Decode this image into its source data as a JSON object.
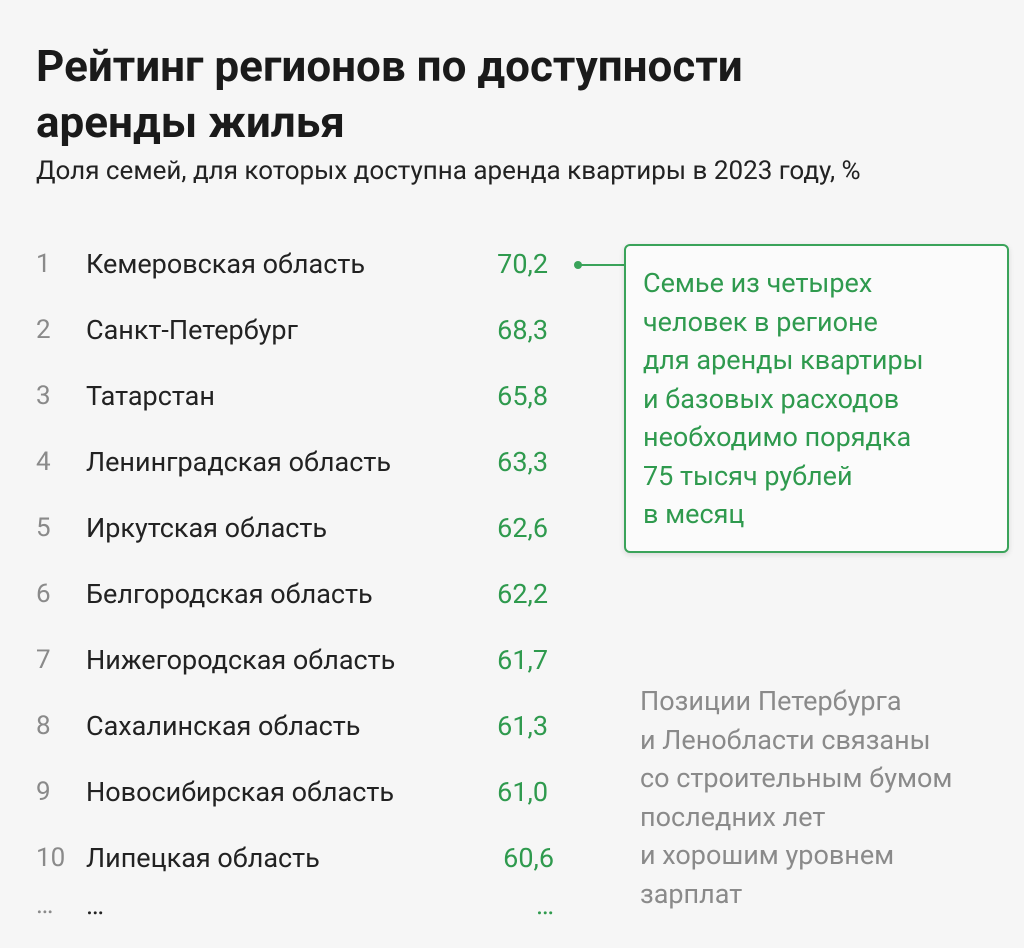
{
  "header": {
    "title_lines": [
      "Рейтинг регионов по доступности",
      "аренды жилья"
    ],
    "subtitle": "Доля семей, для которых доступна аренда квартиры в 2023 году, %"
  },
  "table": {
    "rows": [
      [
        "1",
        "Кемеровская область",
        "70,2"
      ],
      [
        "2",
        "Санкт-Петербург",
        "68,3"
      ],
      [
        "3",
        "Татарстан",
        "65,8"
      ],
      [
        "4",
        "Ленинградская область",
        "63,3"
      ],
      [
        "5",
        "Иркутская область",
        "62,6"
      ],
      [
        "6",
        "Белгородская область",
        "62,2"
      ],
      [
        "7",
        "Нижегородская область",
        "61,7"
      ],
      [
        "8",
        "Сахалинская область",
        "61,3"
      ],
      [
        "9",
        "Новосибирская область",
        "61,0"
      ],
      [
        "10",
        "Липецкая область",
        "60,6"
      ],
      [
        "…",
        "…",
        "…"
      ]
    ]
  },
  "callout": {
    "lines": [
      "Семье из четырех",
      "человек в регионе",
      "для аренды квартиры",
      "и базовых расходов",
      "необходимо порядка",
      "75 тысяч рублей",
      "в месяц"
    ]
  },
  "note": {
    "lines": [
      "Позиции Петербурга",
      "и Ленобласти связаны",
      "со строительным бумом",
      "последних лет",
      "и хорошим уровнем",
      "зарплат"
    ]
  }
}
